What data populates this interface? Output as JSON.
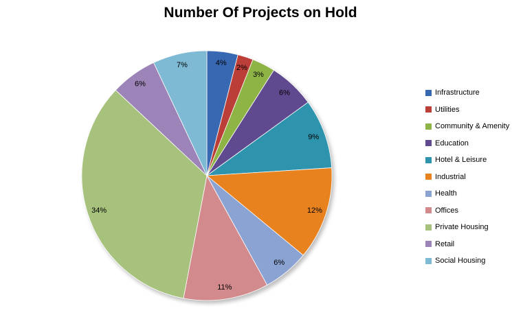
{
  "chart_data": {
    "type": "pie",
    "title": "Number Of Projects on Hold",
    "value_format": "percent",
    "start_angle_deg": 0,
    "direction": "clockwise",
    "legend_position": "right",
    "background_color": "#FFFFFF",
    "title_color": "#000000",
    "label_color": "#000000",
    "slices": [
      {
        "label": "Infrastructure",
        "value": 4,
        "data_label": "4%",
        "color": "#3868B2"
      },
      {
        "label": "Utilities",
        "value": 2,
        "data_label": "2%",
        "color": "#BC3E38"
      },
      {
        "label": "Community & Amenity",
        "value": 3,
        "data_label": "3%",
        "color": "#8FB446"
      },
      {
        "label": "Education",
        "value": 6,
        "data_label": "6%",
        "color": "#604A8F"
      },
      {
        "label": "Hotel & Leisure",
        "value": 9,
        "data_label": "9%",
        "color": "#2E93AC"
      },
      {
        "label": "Industrial",
        "value": 12,
        "data_label": "12%",
        "color": "#E8821E"
      },
      {
        "label": "Health",
        "value": 6,
        "data_label": "6%",
        "color": "#8BA3D3"
      },
      {
        "label": "Offices",
        "value": 11,
        "data_label": "11%",
        "color": "#D38A8D"
      },
      {
        "label": "Private Housing",
        "value": 34,
        "data_label": "34%",
        "color": "#A6C27C"
      },
      {
        "label": "Retail",
        "value": 6,
        "data_label": "6%",
        "color": "#9C84B8"
      },
      {
        "label": "Social Housing",
        "value": 7,
        "data_label": "7%",
        "color": "#7FBAD4"
      }
    ]
  }
}
